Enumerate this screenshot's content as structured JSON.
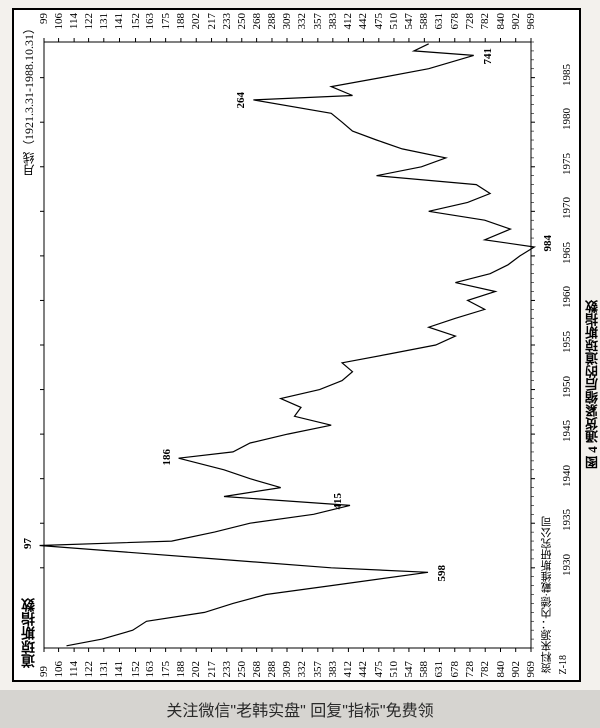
{
  "banner": {
    "text": "关注微信\"老韩实盘\"  回复\"指标\"免费领"
  },
  "chart": {
    "type": "line",
    "title_left": "道琼斯指数",
    "title_right": "月线（1921.3.31-1988.10.31）",
    "figure_caption": "图 4  通货紧缩后的道琼斯指数",
    "source_text": "资料来源：内德·戴维斯研究公司",
    "zi_label": "Z-18",
    "y_ticks": [
      "969",
      "902",
      "840",
      "782",
      "728",
      "678",
      "631",
      "588",
      "547",
      "510",
      "475",
      "442",
      "412",
      "383",
      "357",
      "332",
      "309",
      "288",
      "268",
      "250",
      "233",
      "217",
      "202",
      "188",
      "175",
      "163",
      "152",
      "141",
      "131",
      "122",
      "114",
      "106",
      "99"
    ],
    "x_ticks": [
      "1930",
      "1935",
      "1940",
      "1945",
      "1950",
      "1955",
      "1960",
      "1965",
      "1970",
      "1975",
      "1980",
      "1985"
    ],
    "xlim": [
      1921,
      1989
    ],
    "log_scale": true,
    "ylim_log": [
      99,
      969
    ],
    "line_color": "#000000",
    "line_width": 1.2,
    "background_color": "#ffffff",
    "border_color": "#000000",
    "annotations": [
      {
        "label": "598",
        "year": 1929,
        "value": 598
      },
      {
        "label": "97",
        "year": 1932,
        "value": 97
      },
      {
        "label": "415",
        "year": 1937,
        "value": 415
      },
      {
        "label": "186",
        "year": 1942,
        "value": 186
      },
      {
        "label": "984",
        "year": 1966,
        "value": 984
      },
      {
        "label": "264",
        "year": 1982,
        "value": 264
      },
      {
        "label": "741",
        "year": 1987,
        "value": 741
      }
    ],
    "data": [
      {
        "year": 1921.25,
        "v": 110
      },
      {
        "year": 1922,
        "v": 130
      },
      {
        "year": 1923,
        "v": 150
      },
      {
        "year": 1924,
        "v": 160
      },
      {
        "year": 1925,
        "v": 210
      },
      {
        "year": 1926,
        "v": 240
      },
      {
        "year": 1927,
        "v": 280
      },
      {
        "year": 1928,
        "v": 380
      },
      {
        "year": 1929.5,
        "v": 598
      },
      {
        "year": 1930,
        "v": 380
      },
      {
        "year": 1931,
        "v": 220
      },
      {
        "year": 1932.5,
        "v": 97
      },
      {
        "year": 1933,
        "v": 180
      },
      {
        "year": 1934,
        "v": 220
      },
      {
        "year": 1935,
        "v": 260
      },
      {
        "year": 1936,
        "v": 350
      },
      {
        "year": 1937,
        "v": 415
      },
      {
        "year": 1938,
        "v": 230
      },
      {
        "year": 1939,
        "v": 300
      },
      {
        "year": 1940,
        "v": 260
      },
      {
        "year": 1941,
        "v": 230
      },
      {
        "year": 1942.3,
        "v": 186
      },
      {
        "year": 1943,
        "v": 240
      },
      {
        "year": 1944,
        "v": 260
      },
      {
        "year": 1945,
        "v": 310
      },
      {
        "year": 1946,
        "v": 380
      },
      {
        "year": 1947,
        "v": 320
      },
      {
        "year": 1948,
        "v": 330
      },
      {
        "year": 1949,
        "v": 300
      },
      {
        "year": 1950,
        "v": 360
      },
      {
        "year": 1951,
        "v": 400
      },
      {
        "year": 1952,
        "v": 420
      },
      {
        "year": 1953,
        "v": 400
      },
      {
        "year": 1954,
        "v": 500
      },
      {
        "year": 1955,
        "v": 620
      },
      {
        "year": 1956,
        "v": 680
      },
      {
        "year": 1957,
        "v": 600
      },
      {
        "year": 1958,
        "v": 680
      },
      {
        "year": 1959,
        "v": 780
      },
      {
        "year": 1960,
        "v": 720
      },
      {
        "year": 1961,
        "v": 820
      },
      {
        "year": 1962,
        "v": 680
      },
      {
        "year": 1963,
        "v": 800
      },
      {
        "year": 1964,
        "v": 870
      },
      {
        "year": 1965,
        "v": 920
      },
      {
        "year": 1966,
        "v": 984
      },
      {
        "year": 1966.8,
        "v": 780
      },
      {
        "year": 1968,
        "v": 880
      },
      {
        "year": 1969,
        "v": 780
      },
      {
        "year": 1970,
        "v": 600
      },
      {
        "year": 1971,
        "v": 720
      },
      {
        "year": 1972,
        "v": 800
      },
      {
        "year": 1973,
        "v": 750
      },
      {
        "year": 1974,
        "v": 470
      },
      {
        "year": 1975,
        "v": 580
      },
      {
        "year": 1976,
        "v": 650
      },
      {
        "year": 1977,
        "v": 530
      },
      {
        "year": 1978,
        "v": 470
      },
      {
        "year": 1979,
        "v": 420
      },
      {
        "year": 1980,
        "v": 400
      },
      {
        "year": 1981,
        "v": 380
      },
      {
        "year": 1982.5,
        "v": 264
      },
      {
        "year": 1983,
        "v": 420
      },
      {
        "year": 1984,
        "v": 380
      },
      {
        "year": 1985,
        "v": 480
      },
      {
        "year": 1986,
        "v": 600
      },
      {
        "year": 1987.5,
        "v": 741
      },
      {
        "year": 1988,
        "v": 560
      },
      {
        "year": 1988.8,
        "v": 600
      }
    ]
  }
}
